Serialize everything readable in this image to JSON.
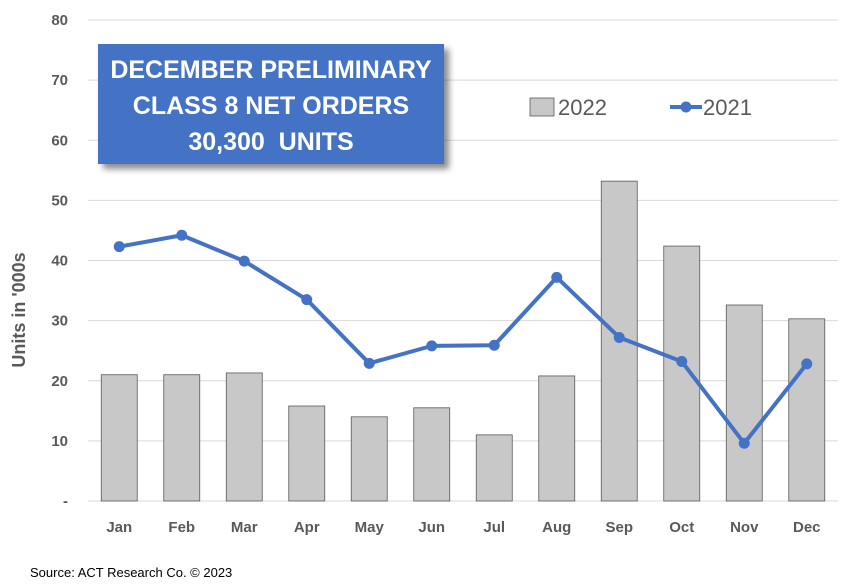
{
  "chart_data": {
    "type": "bar",
    "categories": [
      "Jan",
      "Feb",
      "Mar",
      "Apr",
      "May",
      "Jun",
      "Jul",
      "Aug",
      "Sep",
      "Oct",
      "Nov",
      "Dec"
    ],
    "series": [
      {
        "name": "2022",
        "type": "bar",
        "color": "#c8c8c8",
        "values": [
          21.0,
          21.0,
          21.3,
          15.8,
          14.0,
          15.5,
          11.0,
          20.8,
          53.2,
          42.4,
          32.6,
          30.3
        ]
      },
      {
        "name": "2021",
        "type": "line",
        "color": "#4472c4",
        "values": [
          42.3,
          44.2,
          39.9,
          33.5,
          22.9,
          25.8,
          25.9,
          37.2,
          27.2,
          23.2,
          9.6,
          22.8
        ]
      }
    ],
    "ylabel": "Units in '000s",
    "ylim": [
      0,
      80
    ],
    "yticks": [
      {
        "value": 0,
        "label": "-"
      },
      {
        "value": 10,
        "label": "10"
      },
      {
        "value": 20,
        "label": "20"
      },
      {
        "value": 30,
        "label": "30"
      },
      {
        "value": 40,
        "label": "40"
      },
      {
        "value": 50,
        "label": "50"
      },
      {
        "value": 60,
        "label": "60"
      },
      {
        "value": 70,
        "label": "70"
      },
      {
        "value": 80,
        "label": "80"
      }
    ],
    "grid": true,
    "legend_position": "top-right",
    "annotation": {
      "lines": [
        "DECEMBER PRELIMINARY",
        "CLASS 8 NET ORDERS",
        "30,300  UNITS"
      ],
      "background": "#4472c4"
    }
  },
  "source": "Source: ACT Research Co. © 2023"
}
